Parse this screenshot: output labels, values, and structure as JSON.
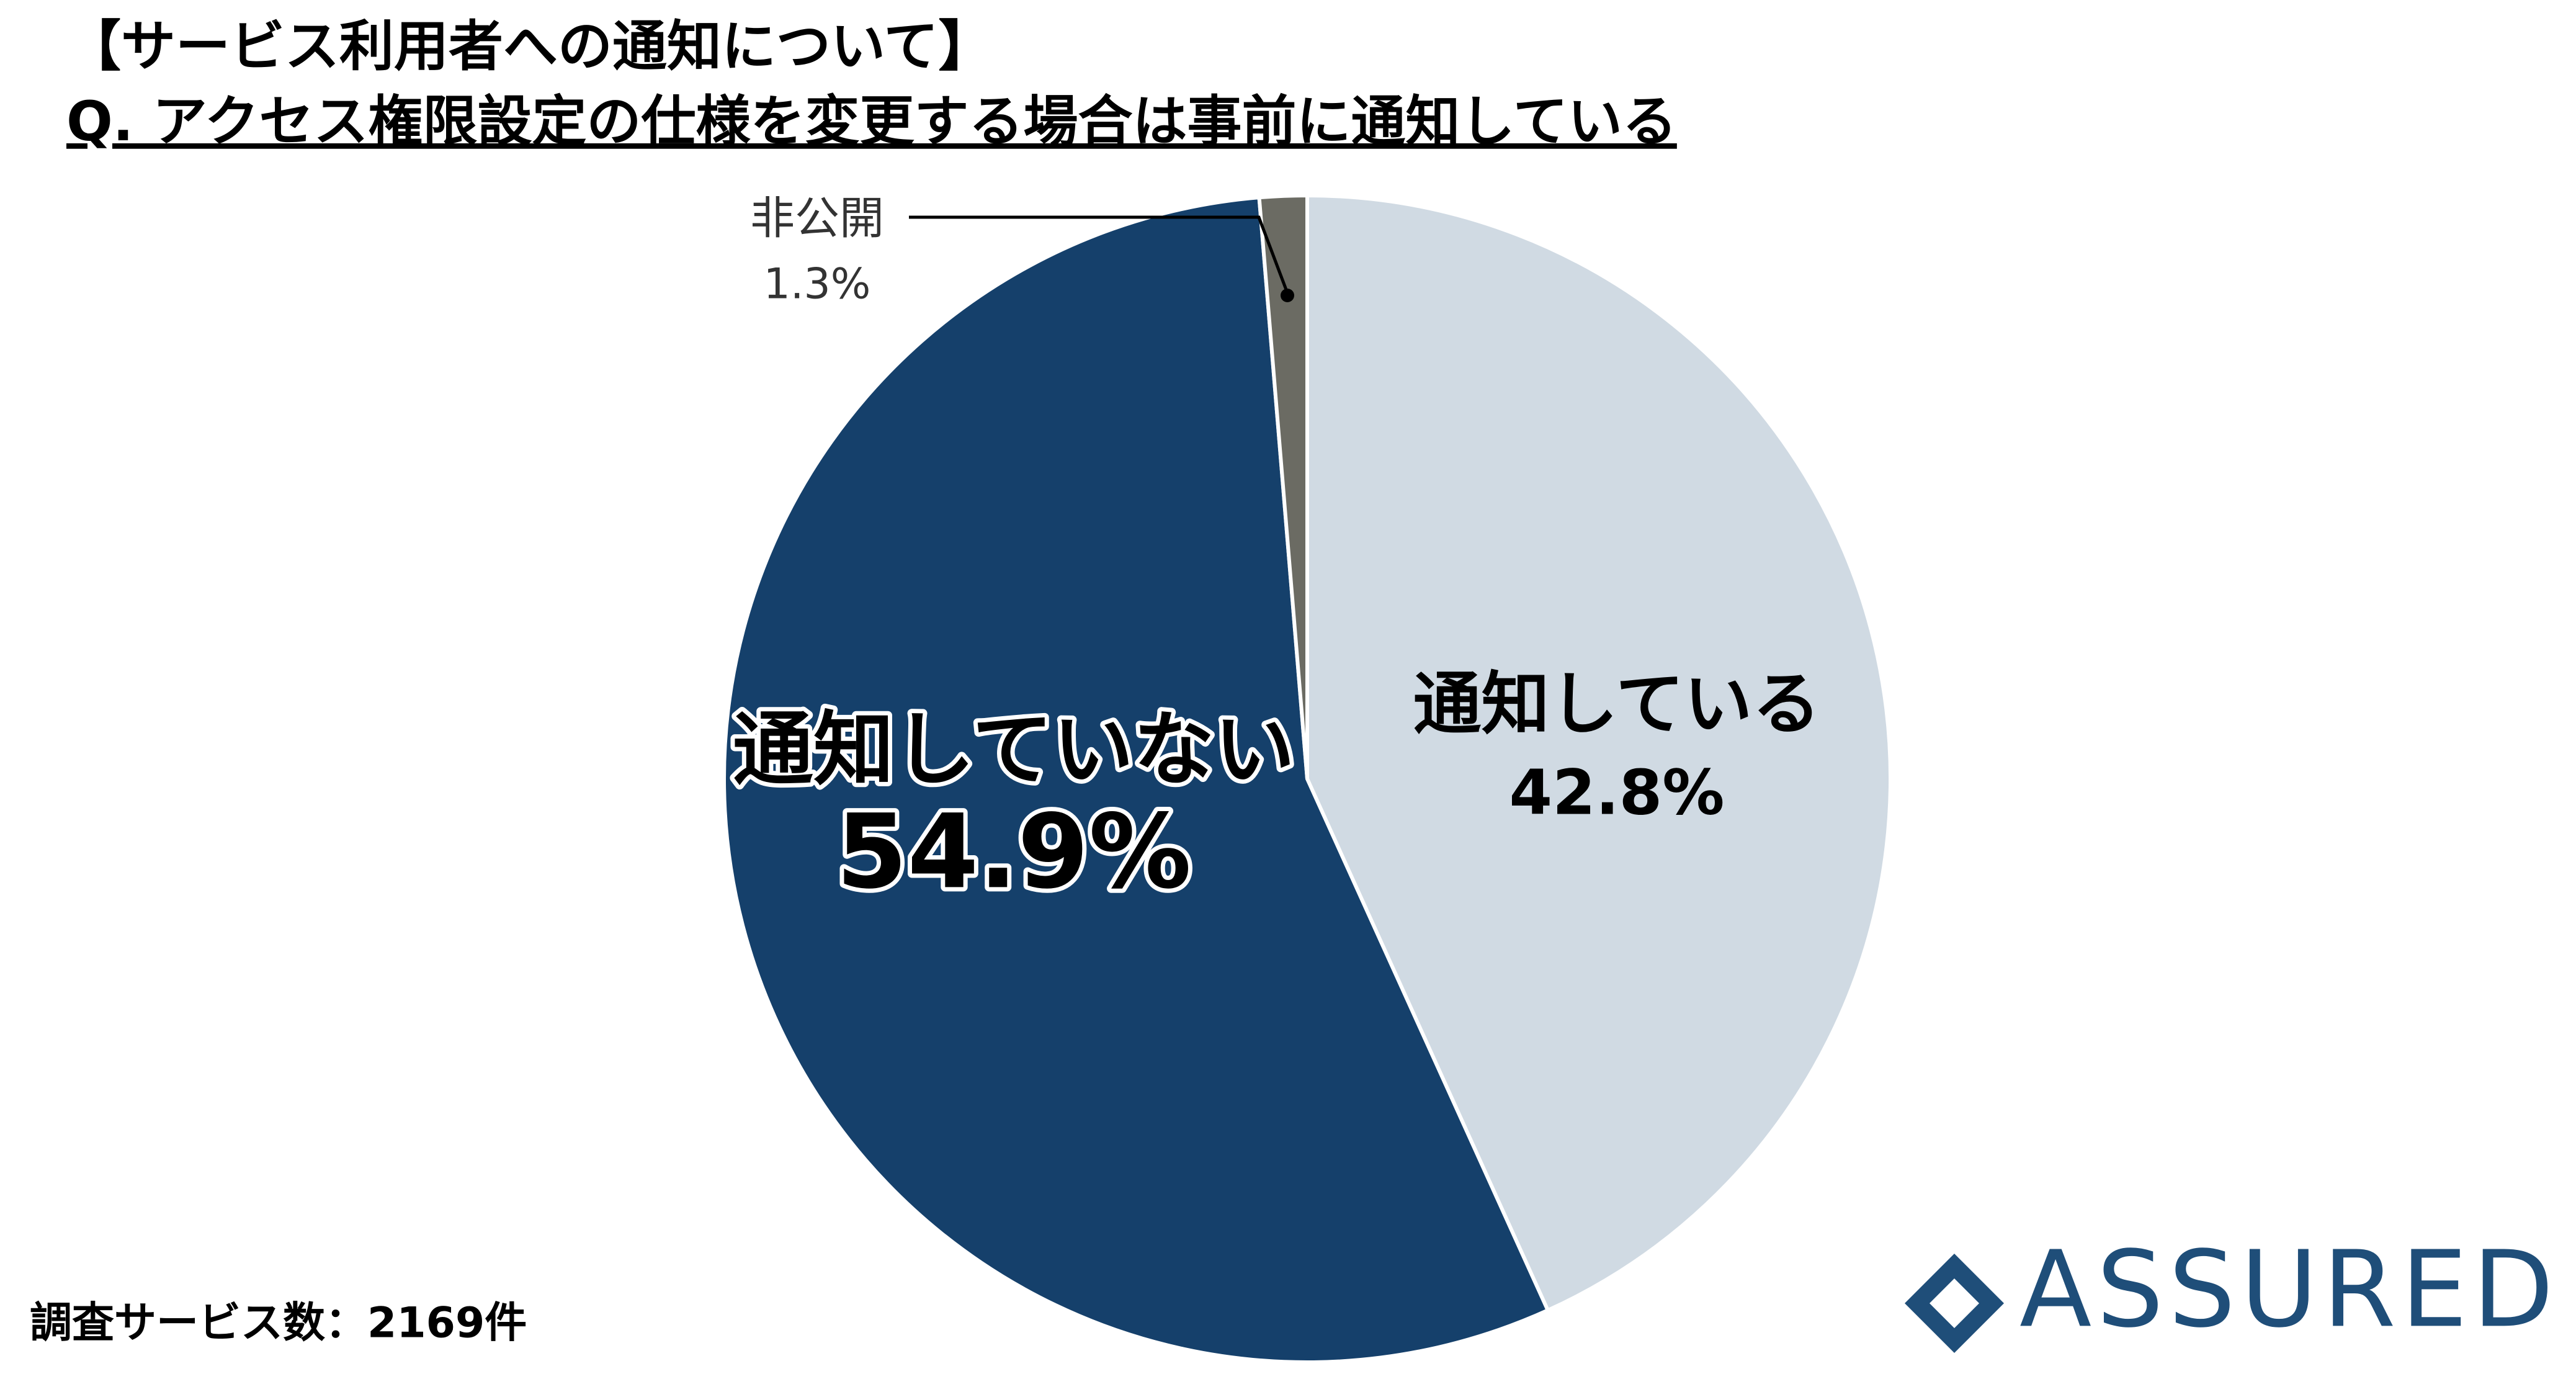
{
  "chart_data": {
    "type": "pie",
    "title": "【サービス利用者への通知について】",
    "subtitle": "Q. アクセス権限設定の仕様を変更する場合は事前に通知している",
    "categories": [
      "通知している",
      "通知していない",
      "非公開"
    ],
    "values": [
      42.8,
      54.9,
      1.3
    ],
    "value_labels": [
      "42.8%",
      "54.9%",
      "1.3%"
    ],
    "colors": [
      "#d0dae3",
      "#15406b",
      "#6b6b63"
    ]
  },
  "footer": {
    "note": "調査サービス数：2169件",
    "logo": "ASSURED"
  }
}
